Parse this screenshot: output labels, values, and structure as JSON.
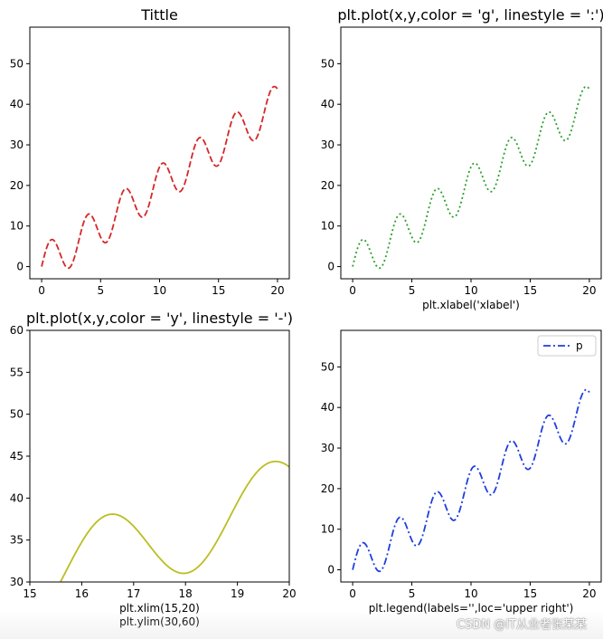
{
  "chart_data": [
    {
      "id": "tl",
      "type": "line",
      "title": "Tittle",
      "xlabel": "",
      "xlim": [
        -1,
        21
      ],
      "ylim": [
        -3,
        59
      ],
      "xticks": [
        "0",
        "5",
        "10",
        "15",
        "20"
      ],
      "yticks": [
        "0",
        "10",
        "20",
        "30",
        "40",
        "50"
      ],
      "series": [
        {
          "color": "#d62728",
          "linestyle": "dashed",
          "function": "y = 2x + 5*sin(2x)",
          "x_range": [
            0,
            20
          ]
        }
      ],
      "legend": null
    },
    {
      "id": "tr",
      "type": "line",
      "title": "plt.plot(x,y,color = 'g', linestyle = ':')",
      "xlabel": "plt.xlabel('xlabel')",
      "xlim": [
        -1,
        21
      ],
      "ylim": [
        -3,
        59
      ],
      "xticks": [
        "0",
        "5",
        "10",
        "15",
        "20"
      ],
      "yticks": [
        "0",
        "10",
        "20",
        "30",
        "40",
        "50"
      ],
      "series": [
        {
          "color": "#2ca02c",
          "linestyle": "dotted",
          "function": "y = 2x + 5*sin(2x)",
          "x_range": [
            0,
            20
          ]
        }
      ],
      "legend": null
    },
    {
      "id": "bl",
      "type": "line",
      "title": "plt.plot(x,y,color = 'y', linestyle = '-')",
      "xlabel": "plt.xlim(15,20)",
      "xlabel2": "plt.ylim(30,60)",
      "xlim": [
        15,
        20
      ],
      "ylim": [
        30,
        60
      ],
      "xticks": [
        "15",
        "16",
        "17",
        "18",
        "19",
        "20"
      ],
      "yticks": [
        "30",
        "35",
        "40",
        "45",
        "50",
        "55",
        "60"
      ],
      "series": [
        {
          "color": "#bcbd22",
          "linestyle": "solid",
          "function": "y = 2x + 5*sin(2x)",
          "x_range": [
            15,
            20
          ]
        }
      ],
      "legend": null
    },
    {
      "id": "br",
      "type": "line",
      "title": "",
      "xlabel": "plt.legend(labels='',loc='upper right')",
      "xlim": [
        -1,
        21
      ],
      "ylim": [
        -3,
        59
      ],
      "xticks": [
        "0",
        "5",
        "10",
        "15",
        "20"
      ],
      "yticks": [
        "0",
        "10",
        "20",
        "30",
        "40",
        "50"
      ],
      "series": [
        {
          "name": "p",
          "color": "#1f3fe0",
          "linestyle": "dashdot",
          "function": "y = 2x + 5*sin(2x)",
          "x_range": [
            0,
            20
          ]
        }
      ],
      "legend": {
        "loc": "upper right",
        "label": "p"
      }
    }
  ],
  "watermark": "CSDN @IT从业者张某某"
}
